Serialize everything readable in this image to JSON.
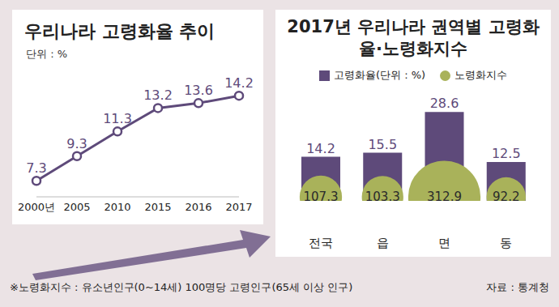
{
  "chart_data": [
    {
      "type": "line",
      "title": "우리나라 고령화율 추이",
      "subtitle": "단위 : %",
      "categories": [
        "2000년",
        "2005",
        "2010",
        "2015",
        "2016",
        "2017"
      ],
      "values": [
        7.3,
        9.3,
        11.3,
        13.2,
        13.6,
        14.2
      ],
      "color": "#5e4a7a",
      "marker": "circle",
      "ylim": [
        6,
        15
      ],
      "tick_labels": "x",
      "data_labels": true,
      "grid": false
    },
    {
      "type": "bar",
      "title": "2017년 우리나라 권역별 고령화율·노령화지수",
      "categories": [
        "전국",
        "읍",
        "면",
        "동"
      ],
      "series": [
        {
          "name": "고령화율(단위 : %)",
          "type": "bar",
          "color": "#5e4a7a",
          "values": [
            14.2,
            15.5,
            28.6,
            12.5
          ]
        },
        {
          "name": "노령화지수",
          "type": "bubble",
          "axis": "y2",
          "color": "#a9b25a",
          "values": [
            107.3,
            103.3,
            312.9,
            92.2
          ]
        }
      ],
      "ylim": [
        0,
        30
      ],
      "y2lim": [
        0,
        350
      ],
      "tick_labels": "x",
      "data_labels": true,
      "legend": "top",
      "grid": false
    }
  ],
  "footnote": "※노령화지수 : 유소년인구(0~14세) 100명당 고령인구(65세 이상 인구)",
  "source": "자료 : 통계청"
}
